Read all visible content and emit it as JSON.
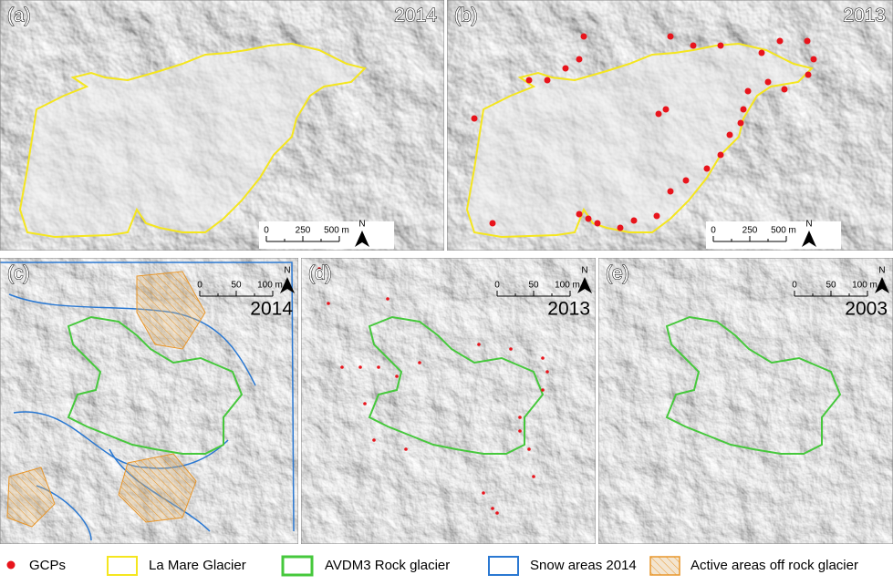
{
  "panels": [
    {
      "label": "(a)",
      "year": "2014",
      "scale": [
        "0",
        "250",
        "500 m"
      ],
      "north": "N"
    },
    {
      "label": "(b)",
      "year": "2013",
      "scale": [
        "0",
        "250",
        "500 m"
      ],
      "north": "N"
    },
    {
      "label": "(c)",
      "year": "2014",
      "scale": [
        "0",
        "50",
        "100 m"
      ],
      "north": "N"
    },
    {
      "label": "(d)",
      "year": "2013",
      "scale": [
        "0",
        "50",
        "100 m"
      ],
      "north": "N"
    },
    {
      "label": "(e)",
      "year": "2003",
      "scale": [
        "0",
        "50",
        "100 m"
      ],
      "north": "N"
    }
  ],
  "legend": [
    "GCPs",
    "La Mare Glacier",
    "AVDM3 Rock glacier",
    "Snow areas 2014",
    "Active areas off rock glacier"
  ]
}
